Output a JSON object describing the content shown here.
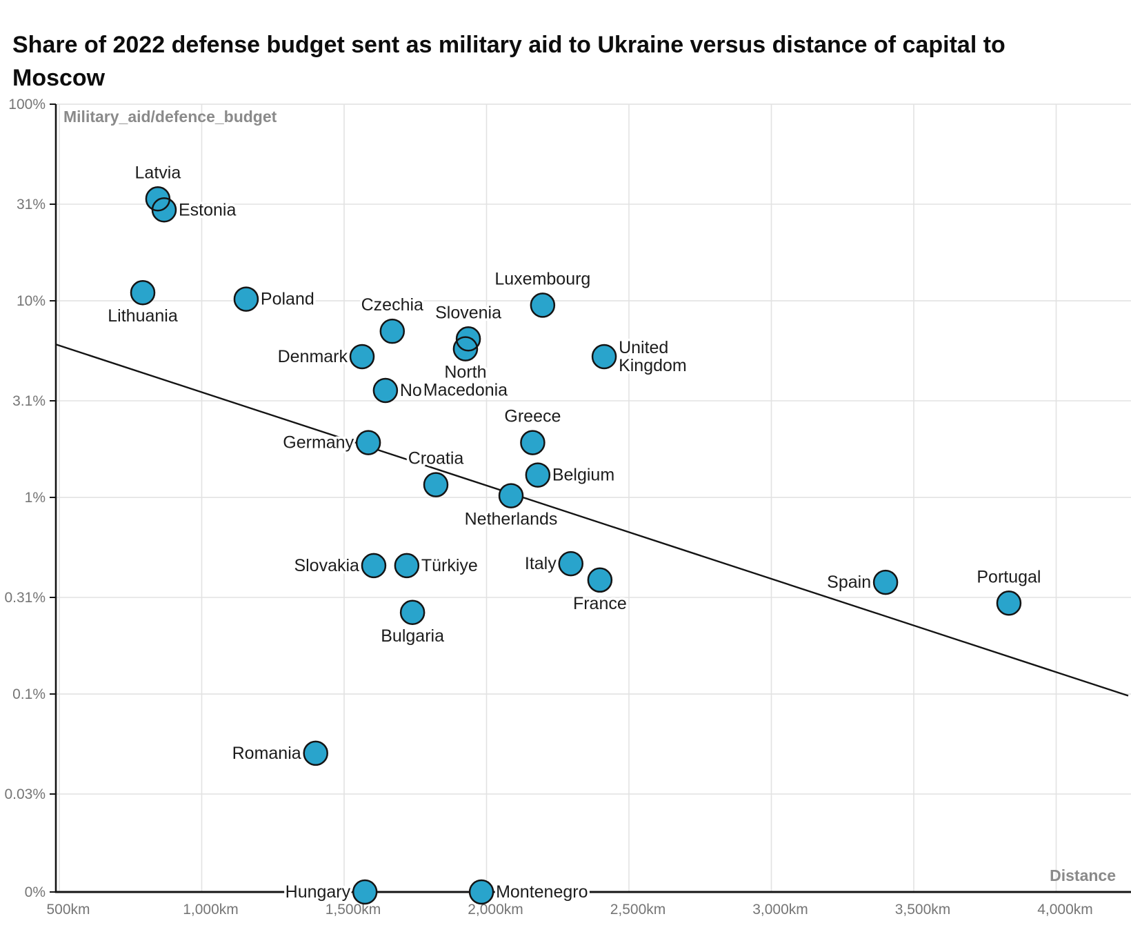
{
  "title": "Share of 2022 defense budget sent as military aid to Ukraine versus distance of capital to Moscow",
  "chart_data": {
    "type": "scatter",
    "title": "Share of 2022 defense budget sent as military aid to Ukraine versus distance of capital to Moscow",
    "x_axis": {
      "label": "Distance",
      "unit": "km",
      "min": 455,
      "max": 4253,
      "grid": true,
      "ticks": [
        {
          "value": 500,
          "label": "500km"
        },
        {
          "value": 1000,
          "label": "1,000km"
        },
        {
          "value": 1500,
          "label": "1,500km"
        },
        {
          "value": 2000,
          "label": "2,000km"
        },
        {
          "value": 2500,
          "label": "2,500km"
        },
        {
          "value": 3000,
          "label": "3,000km"
        },
        {
          "value": 3500,
          "label": "3,500km"
        },
        {
          "value": 4000,
          "label": "4,000km"
        }
      ]
    },
    "y_axis": {
      "label": "Military_aid/defence_budget",
      "scale": "log",
      "unit": "%",
      "grid": true,
      "ticks": [
        {
          "value": 100,
          "label": "100%"
        },
        {
          "value": 31,
          "label": "31%"
        },
        {
          "value": 10,
          "label": "10%"
        },
        {
          "value": 3.1,
          "label": "3.1%"
        },
        {
          "value": 1,
          "label": "1%"
        },
        {
          "value": 0.31,
          "label": "0.31%"
        },
        {
          "value": 0.1,
          "label": "0.1%"
        },
        {
          "value": 0.031,
          "label": "0.03%"
        },
        {
          "value": 0,
          "label": "0%"
        }
      ]
    },
    "points": [
      {
        "country": "Latvia",
        "distance_km": 846,
        "aid_pct": 33,
        "label_lines": [
          "Latvia"
        ],
        "label_pos": "above"
      },
      {
        "country": "Estonia",
        "distance_km": 868,
        "aid_pct": 29,
        "label_lines": [
          "Estonia"
        ],
        "label_pos": "right"
      },
      {
        "country": "Lithuania",
        "distance_km": 793,
        "aid_pct": 11,
        "label_lines": [
          "Lithuania"
        ],
        "label_pos": "below"
      },
      {
        "country": "Poland",
        "distance_km": 1156,
        "aid_pct": 10.2,
        "label_lines": [
          "Poland"
        ],
        "label_pos": "right"
      },
      {
        "country": "Czechia",
        "distance_km": 1669,
        "aid_pct": 7.0,
        "label_lines": [
          "Czechia"
        ],
        "label_pos": "above"
      },
      {
        "country": "Slovenia",
        "distance_km": 1936,
        "aid_pct": 6.4,
        "label_lines": [
          "Slovenia"
        ],
        "label_pos": "above"
      },
      {
        "country": "North Macedonia",
        "distance_km": 1926,
        "aid_pct": 5.7,
        "label_lines": [
          "North",
          "Macedonia"
        ],
        "label_pos": "below"
      },
      {
        "country": "Denmark",
        "distance_km": 1563,
        "aid_pct": 5.2,
        "label_lines": [
          "Denmark"
        ],
        "label_pos": "left"
      },
      {
        "country": "United Kingdom",
        "distance_km": 2413,
        "aid_pct": 5.2,
        "label_lines": [
          "United",
          "Kingdom"
        ],
        "label_pos": "right"
      },
      {
        "country": "Norway",
        "distance_km": 1645,
        "aid_pct": 3.5,
        "label_lines": [
          "No"
        ],
        "label_pos": "right"
      },
      {
        "country": "Luxembourg",
        "distance_km": 2197,
        "aid_pct": 9.5,
        "label_lines": [
          "Luxembourg"
        ],
        "label_pos": "above"
      },
      {
        "country": "Greece",
        "distance_km": 2162,
        "aid_pct": 1.9,
        "label_lines": [
          "Greece"
        ],
        "label_pos": "above"
      },
      {
        "country": "Germany",
        "distance_km": 1585,
        "aid_pct": 1.9,
        "label_lines": [
          "Germany"
        ],
        "label_pos": "left"
      },
      {
        "country": "Belgium",
        "distance_km": 2180,
        "aid_pct": 1.3,
        "label_lines": [
          "Belgium"
        ],
        "label_pos": "right"
      },
      {
        "country": "Croatia",
        "distance_km": 1822,
        "aid_pct": 1.16,
        "label_lines": [
          "Croatia"
        ],
        "label_pos": "above"
      },
      {
        "country": "Netherlands",
        "distance_km": 2086,
        "aid_pct": 1.02,
        "label_lines": [
          "Netherlands"
        ],
        "label_pos": "below"
      },
      {
        "country": "Italy",
        "distance_km": 2296,
        "aid_pct": 0.46,
        "label_lines": [
          "Italy"
        ],
        "label_pos": "left"
      },
      {
        "country": "Slovakia",
        "distance_km": 1604,
        "aid_pct": 0.45,
        "label_lines": [
          "Slovakia"
        ],
        "label_pos": "left"
      },
      {
        "country": "Türkiye",
        "distance_km": 1720,
        "aid_pct": 0.45,
        "label_lines": [
          "Türkiye"
        ],
        "label_pos": "right"
      },
      {
        "country": "France",
        "distance_km": 2398,
        "aid_pct": 0.38,
        "label_lines": [
          "France"
        ],
        "label_pos": "below"
      },
      {
        "country": "Spain",
        "distance_km": 3401,
        "aid_pct": 0.37,
        "label_lines": [
          "Spain"
        ],
        "label_pos": "left"
      },
      {
        "country": "Portugal",
        "distance_km": 3834,
        "aid_pct": 0.29,
        "label_lines": [
          "Portugal"
        ],
        "label_pos": "above"
      },
      {
        "country": "Bulgaria",
        "distance_km": 1740,
        "aid_pct": 0.26,
        "label_lines": [
          "Bulgaria"
        ],
        "label_pos": "below"
      },
      {
        "country": "Romania",
        "distance_km": 1400,
        "aid_pct": 0.05,
        "label_lines": [
          "Romania"
        ],
        "label_pos": "left"
      },
      {
        "country": "Hungary",
        "distance_km": 1573,
        "aid_pct": 0,
        "label_lines": [
          "Hungary"
        ],
        "label_pos": "left"
      },
      {
        "country": "Montenegro",
        "distance_km": 1982,
        "aid_pct": 0,
        "label_lines": [
          "Montenegro"
        ],
        "label_pos": "right"
      }
    ],
    "trend_line": {
      "from": {
        "distance_km": 488,
        "aid_pct": 6.0
      },
      "to": {
        "distance_km": 4253,
        "aid_pct": 0.098
      }
    },
    "legend": "none",
    "colors": {
      "point_fill": "#29a4cc",
      "point_stroke": "#141414",
      "grid": "#e2e2e2",
      "axis": "#141414",
      "tick_label": "#757575",
      "axis_title": "#8a8a8a",
      "country_label": "#1c1c1c",
      "background": "#ffffff"
    }
  }
}
